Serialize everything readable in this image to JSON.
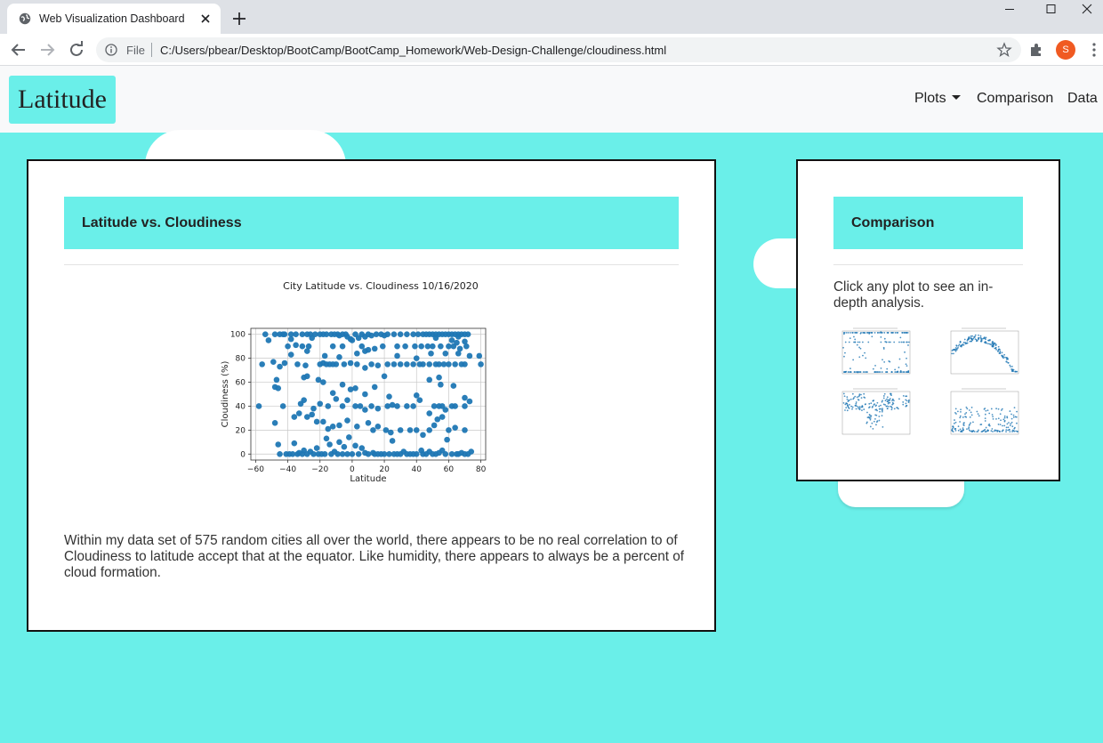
{
  "browser": {
    "tab_title": "Web Visualization Dashboard",
    "scheme_label": "File",
    "url": "C:/Users/pbear/Desktop/BootCamp/BootCamp_Homework/Web-Design-Challenge/cloudiness.html",
    "profile_initial": "S",
    "icons": [
      "globe-icon",
      "close-icon",
      "plus-icon",
      "back-arrow-icon",
      "forward-arrow-icon",
      "reload-icon",
      "info-icon",
      "star-icon",
      "puzzle-icon",
      "kebab-menu-icon",
      "minimize-icon",
      "maximize-icon",
      "close-window-icon"
    ]
  },
  "navbar": {
    "brand": "Latitude",
    "plots_label": "Plots",
    "comparison_label": "Comparison",
    "data_label": "Data"
  },
  "main": {
    "header": "Latitude vs. Cloudiness",
    "description": "Within my data set of 575 random cities all over the world, there appears to be no real correlation to of Cloudiness to latitude accept that at the equator. Like humidity, there appears to always be a percent of cloud formation."
  },
  "side": {
    "header": "Comparison",
    "description": "Click any plot to see an in-depth analysis."
  },
  "colors": {
    "accent": "#6aefe9",
    "point": "#1f77b4",
    "panel_border": "#111111"
  },
  "chart_data": {
    "type": "scatter",
    "title": "City Latitude vs. Cloudiness 10/16/2020",
    "xlabel": "Latitude",
    "ylabel": "Cloudiness (%)",
    "xlim": [
      -63,
      83
    ],
    "ylim": [
      -5,
      105
    ],
    "xticks": [
      "−60",
      "−40",
      "−20",
      "0",
      "20",
      "40",
      "60",
      "80"
    ],
    "yticks": [
      "0",
      "20",
      "40",
      "60",
      "80",
      "100"
    ],
    "xtick_values": [
      -60,
      -40,
      -20,
      0,
      20,
      40,
      60,
      80
    ],
    "ytick_values": [
      0,
      20,
      40,
      60,
      80,
      100
    ],
    "grid": true,
    "series": [
      {
        "points": [
          [
            -54,
            100
          ],
          [
            -52,
            95
          ],
          [
            -48,
            100
          ],
          [
            -45,
            100
          ],
          [
            -43,
            100
          ],
          [
            -42,
            100
          ],
          [
            -38,
            100
          ],
          [
            -35,
            100
          ],
          [
            -31,
            100
          ],
          [
            -28,
            100
          ],
          [
            -26,
            100
          ],
          [
            -23,
            100
          ],
          [
            -20,
            100
          ],
          [
            -18,
            100
          ],
          [
            -16,
            100
          ],
          [
            -13,
            100
          ],
          [
            -11,
            100
          ],
          [
            -9,
            100
          ],
          [
            -6,
            100
          ],
          [
            -4,
            100
          ],
          [
            -3,
            98
          ],
          [
            -1,
            96
          ],
          [
            2,
            100
          ],
          [
            4,
            97
          ],
          [
            6,
            100
          ],
          [
            8,
            98
          ],
          [
            10,
            100
          ],
          [
            12,
            99
          ],
          [
            15,
            100
          ],
          [
            18,
            100
          ],
          [
            22,
            100
          ],
          [
            26,
            100
          ],
          [
            30,
            100
          ],
          [
            34,
            100
          ],
          [
            38,
            100
          ],
          [
            41,
            100
          ],
          [
            44,
            100
          ],
          [
            46,
            100
          ],
          [
            48,
            100
          ],
          [
            50,
            100
          ],
          [
            52,
            100
          ],
          [
            54,
            100
          ],
          [
            56,
            100
          ],
          [
            58,
            100
          ],
          [
            60,
            100
          ],
          [
            62,
            100
          ],
          [
            64,
            100
          ],
          [
            66,
            100
          ],
          [
            68,
            100
          ],
          [
            70,
            100
          ],
          [
            72,
            100
          ],
          [
            -38,
            96
          ],
          [
            -25,
            97
          ],
          [
            -8,
            99
          ],
          [
            0,
            95
          ],
          [
            20,
            99
          ],
          [
            52,
            97
          ],
          [
            62,
            95
          ],
          [
            66,
            98
          ],
          [
            70,
            94
          ],
          [
            -40,
            90
          ],
          [
            -35,
            91
          ],
          [
            -31,
            90
          ],
          [
            -27,
            90
          ],
          [
            -12,
            90
          ],
          [
            -6,
            90
          ],
          [
            6,
            90
          ],
          [
            10,
            87
          ],
          [
            14,
            88
          ],
          [
            19,
            90
          ],
          [
            28,
            90
          ],
          [
            33,
            90
          ],
          [
            39,
            90
          ],
          [
            43,
            90
          ],
          [
            47,
            90
          ],
          [
            50,
            90
          ],
          [
            55,
            90
          ],
          [
            60,
            90
          ],
          [
            63,
            90
          ],
          [
            65,
            93
          ],
          [
            67,
            88
          ],
          [
            71,
            90
          ],
          [
            -56,
            75
          ],
          [
            -49,
            77
          ],
          [
            -45,
            73
          ],
          [
            -42,
            76
          ],
          [
            -34,
            75
          ],
          [
            -29,
            74
          ],
          [
            -20,
            75
          ],
          [
            -18,
            76
          ],
          [
            -16,
            75
          ],
          [
            -14,
            75
          ],
          [
            -12,
            75
          ],
          [
            -10,
            75
          ],
          [
            -5,
            75
          ],
          [
            -1,
            76
          ],
          [
            3,
            75
          ],
          [
            8,
            72
          ],
          [
            12,
            75
          ],
          [
            16,
            74
          ],
          [
            22,
            75
          ],
          [
            26,
            75
          ],
          [
            30,
            75
          ],
          [
            34,
            75
          ],
          [
            38,
            75
          ],
          [
            42,
            75
          ],
          [
            44,
            75
          ],
          [
            48,
            75
          ],
          [
            52,
            75
          ],
          [
            54,
            75
          ],
          [
            57,
            75
          ],
          [
            60,
            75
          ],
          [
            64,
            75
          ],
          [
            68,
            75
          ],
          [
            70,
            75
          ],
          [
            80,
            75
          ],
          [
            -38,
            83
          ],
          [
            -28,
            86
          ],
          [
            -17,
            82
          ],
          [
            -8,
            81
          ],
          [
            3,
            84
          ],
          [
            8,
            86
          ],
          [
            28,
            82
          ],
          [
            40,
            80
          ],
          [
            49,
            84
          ],
          [
            58,
            84
          ],
          [
            66,
            84
          ],
          [
            73,
            82
          ],
          [
            79,
            82
          ],
          [
            -48,
            56
          ],
          [
            -47,
            62
          ],
          [
            -46,
            55
          ],
          [
            -30,
            64
          ],
          [
            -28,
            65
          ],
          [
            -21,
            62
          ],
          [
            -18,
            60
          ],
          [
            -12,
            51
          ],
          [
            -6,
            58
          ],
          [
            -1,
            54
          ],
          [
            2,
            55
          ],
          [
            8,
            50
          ],
          [
            14,
            56
          ],
          [
            20,
            65
          ],
          [
            23,
            48
          ],
          [
            40,
            49
          ],
          [
            48,
            62
          ],
          [
            54,
            64
          ],
          [
            55,
            58
          ],
          [
            63,
            57
          ],
          [
            70,
            47
          ],
          [
            -58,
            40
          ],
          [
            -43,
            40
          ],
          [
            -32,
            42
          ],
          [
            -30,
            45
          ],
          [
            -24,
            38
          ],
          [
            -20,
            42
          ],
          [
            -15,
            40
          ],
          [
            -10,
            46
          ],
          [
            -6,
            40
          ],
          [
            -3,
            45
          ],
          [
            2,
            40
          ],
          [
            5,
            40
          ],
          [
            8,
            37
          ],
          [
            12,
            40
          ],
          [
            16,
            38
          ],
          [
            22,
            40
          ],
          [
            25,
            41
          ],
          [
            28,
            40
          ],
          [
            34,
            40
          ],
          [
            38,
            40
          ],
          [
            42,
            45
          ],
          [
            48,
            34
          ],
          [
            51,
            40
          ],
          [
            54,
            40
          ],
          [
            56,
            40
          ],
          [
            58,
            37
          ],
          [
            62,
            40
          ],
          [
            64,
            40
          ],
          [
            70,
            40
          ],
          [
            73,
            44
          ],
          [
            -48,
            26
          ],
          [
            -36,
            31
          ],
          [
            -33,
            34
          ],
          [
            -28,
            31
          ],
          [
            -25,
            33
          ],
          [
            -22,
            27
          ],
          [
            -18,
            27
          ],
          [
            -15,
            21
          ],
          [
            -12,
            23
          ],
          [
            -8,
            24
          ],
          [
            -3,
            28
          ],
          [
            3,
            23
          ],
          [
            10,
            26
          ],
          [
            13,
            20
          ],
          [
            16,
            23
          ],
          [
            21,
            20
          ],
          [
            24,
            18
          ],
          [
            30,
            20
          ],
          [
            36,
            20
          ],
          [
            40,
            20
          ],
          [
            44,
            16
          ],
          [
            48,
            20
          ],
          [
            51,
            24
          ],
          [
            53,
            29
          ],
          [
            56,
            31
          ],
          [
            60,
            20
          ],
          [
            64,
            22
          ],
          [
            70,
            20
          ],
          [
            -46,
            8
          ],
          [
            -39,
            0
          ],
          [
            -36,
            9
          ],
          [
            -33,
            1
          ],
          [
            -30,
            3
          ],
          [
            -26,
            2
          ],
          [
            -22,
            5
          ],
          [
            -19,
            0
          ],
          [
            -16,
            13
          ],
          [
            -14,
            8
          ],
          [
            -11,
            2
          ],
          [
            -8,
            10
          ],
          [
            -5,
            6
          ],
          [
            -2,
            14
          ],
          [
            2,
            7
          ],
          [
            6,
            5
          ],
          [
            8,
            1
          ],
          [
            10,
            0
          ],
          [
            13,
            1
          ],
          [
            16,
            0
          ],
          [
            20,
            0
          ],
          [
            23,
            0
          ],
          [
            25,
            11
          ],
          [
            28,
            0
          ],
          [
            32,
            2
          ],
          [
            36,
            0
          ],
          [
            40,
            0
          ],
          [
            43,
            3
          ],
          [
            46,
            0
          ],
          [
            48,
            2
          ],
          [
            52,
            0
          ],
          [
            54,
            1
          ],
          [
            56,
            3
          ],
          [
            59,
            12
          ],
          [
            62,
            0
          ],
          [
            65,
            0
          ],
          [
            68,
            1
          ],
          [
            72,
            0
          ],
          [
            74,
            2
          ],
          [
            -45,
            0
          ],
          [
            -41,
            0
          ],
          [
            -37,
            0
          ],
          [
            -34,
            0
          ],
          [
            -31,
            0
          ],
          [
            -28,
            0
          ],
          [
            -24,
            0
          ],
          [
            -21,
            0
          ],
          [
            -17,
            0
          ],
          [
            -13,
            0
          ],
          [
            -9,
            0
          ],
          [
            -6,
            0
          ],
          [
            -3,
            0
          ],
          [
            0,
            0
          ],
          [
            4,
            0
          ],
          [
            14,
            0
          ],
          [
            18,
            0
          ],
          [
            26,
            0
          ],
          [
            30,
            0
          ],
          [
            34,
            0
          ],
          [
            38,
            0
          ],
          [
            44,
            0
          ],
          [
            50,
            0
          ],
          [
            58,
            0
          ],
          [
            66,
            0
          ],
          [
            70,
            0
          ]
        ]
      }
    ]
  },
  "thumbnails": [
    {
      "name": "thumb-latitude-vs-cloudiness",
      "title": "City Latitude vs. Cloudiness 10/16/2020"
    },
    {
      "name": "thumb-latitude-vs-temperature",
      "title": "City Latitude vs. Temperature 10/16/2020"
    },
    {
      "name": "thumb-latitude-vs-humidity",
      "title": "City Latitude vs. Humidity 10/16/2020"
    },
    {
      "name": "thumb-latitude-vs-wind-speed",
      "title": "City Latitude vs. Wind Speed 10/16/2020"
    }
  ]
}
